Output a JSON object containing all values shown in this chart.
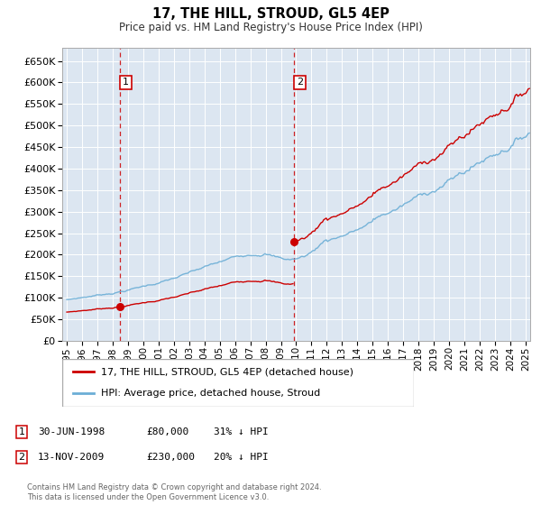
{
  "title": "17, THE HILL, STROUD, GL5 4EP",
  "subtitle": "Price paid vs. HM Land Registry's House Price Index (HPI)",
  "hpi_color": "#6baed6",
  "price_color": "#cc0000",
  "plot_bg": "#dce6f1",
  "ylim": [
    0,
    680000
  ],
  "yticks": [
    0,
    50000,
    100000,
    150000,
    200000,
    250000,
    300000,
    350000,
    400000,
    450000,
    500000,
    550000,
    600000,
    650000
  ],
  "xlim_start": 1994.7,
  "xlim_end": 2025.3,
  "sale1_x": 1998.49,
  "sale1_y": 80000,
  "sale2_x": 2009.87,
  "sale2_y": 230000,
  "legend_line1": "17, THE HILL, STROUD, GL5 4EP (detached house)",
  "legend_line2": "HPI: Average price, detached house, Stroud",
  "note1_label": "1",
  "note1_date": "30-JUN-1998",
  "note1_price": "£80,000",
  "note1_hpi": "31% ↓ HPI",
  "note2_label": "2",
  "note2_date": "13-NOV-2009",
  "note2_price": "£230,000",
  "note2_hpi": "20% ↓ HPI",
  "footer": "Contains HM Land Registry data © Crown copyright and database right 2024.\nThis data is licensed under the Open Government Licence v3.0."
}
